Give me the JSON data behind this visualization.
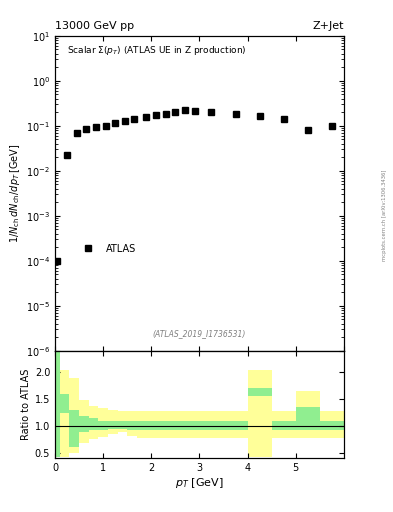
{
  "title_left": "13000 GeV pp",
  "title_right": "Z+Jet",
  "ylabel_main": "1/N_{ch} dN_{ch}/dp_T [GeV]",
  "ylabel_ratio": "Ratio to ATLAS",
  "xlabel": "p_{T} [GeV]",
  "watermark": "(ATLAS_2019_I1736531)",
  "side_text": "mcplots.cern.ch [arXiv:1306.3436]",
  "legend_label": "ATLAS",
  "data_x": [
    0.05,
    0.25,
    0.45,
    0.65,
    0.85,
    1.05,
    1.25,
    1.45,
    1.65,
    1.9,
    2.1,
    2.3,
    2.5,
    2.7,
    2.9,
    3.25,
    3.75,
    4.25,
    4.75,
    5.25,
    5.75
  ],
  "data_y": [
    0.0001,
    0.022,
    0.068,
    0.085,
    0.093,
    0.1,
    0.115,
    0.128,
    0.142,
    0.158,
    0.175,
    0.185,
    0.2,
    0.22,
    0.215,
    0.2,
    0.185,
    0.165,
    0.14,
    0.082,
    0.097
  ],
  "xlim": [
    0,
    6.0
  ],
  "ylim_main": [
    1e-06,
    10
  ],
  "ylim_ratio": [
    0.4,
    2.4
  ],
  "ratio_yticks": [
    0.5,
    1.0,
    1.5,
    2.0
  ],
  "ratio_xticks": [
    0,
    1,
    2,
    3,
    4,
    5
  ],
  "ratio_bin_edges": [
    0.0,
    0.1,
    0.3,
    0.5,
    0.7,
    0.9,
    1.1,
    1.3,
    1.5,
    1.7,
    1.9,
    2.1,
    2.3,
    2.5,
    2.7,
    3.0,
    3.5,
    4.0,
    4.5,
    5.0,
    5.5,
    6.0
  ],
  "ratio_green_lo": [
    0.42,
    1.25,
    0.6,
    0.88,
    0.92,
    0.93,
    0.95,
    0.95,
    0.93,
    0.93,
    0.93,
    0.93,
    0.93,
    0.93,
    0.93,
    0.93,
    0.93,
    1.55,
    0.93,
    0.93,
    0.93
  ],
  "ratio_green_hi": [
    2.4,
    1.6,
    1.3,
    1.18,
    1.15,
    1.1,
    1.1,
    1.1,
    1.1,
    1.1,
    1.1,
    1.1,
    1.1,
    1.1,
    1.1,
    1.1,
    1.1,
    1.7,
    1.1,
    1.35,
    1.1
  ],
  "ratio_yellow_lo": [
    0.42,
    0.43,
    0.5,
    0.68,
    0.75,
    0.8,
    0.85,
    0.88,
    0.82,
    0.78,
    0.78,
    0.78,
    0.78,
    0.78,
    0.78,
    0.78,
    0.78,
    0.42,
    0.78,
    0.78,
    0.78
  ],
  "ratio_yellow_hi": [
    2.4,
    2.05,
    1.9,
    1.48,
    1.38,
    1.33,
    1.3,
    1.28,
    1.28,
    1.28,
    1.28,
    1.28,
    1.28,
    1.28,
    1.28,
    1.28,
    1.28,
    2.05,
    1.28,
    1.65,
    1.28
  ],
  "marker_color": "black",
  "marker_style": "s",
  "marker_size": 4,
  "green_color": "#90EE90",
  "yellow_color": "#FFFF99",
  "background_color": "white"
}
